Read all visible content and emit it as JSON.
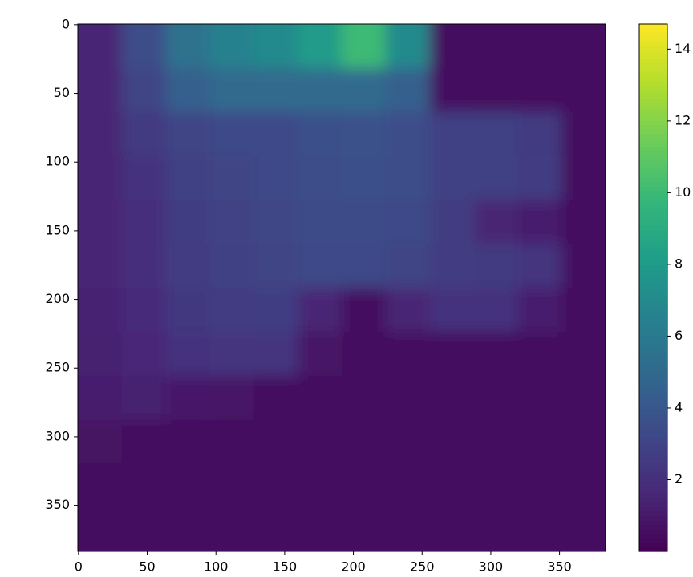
{
  "chart_data": {
    "type": "heatmap",
    "cmap": "viridis",
    "x": [
      15.5,
      47.5,
      79.5,
      111.5,
      143.5,
      175.5,
      207.5,
      239.5,
      271.5,
      303.5,
      335.5,
      367.5
    ],
    "y": [
      15.5,
      47.5,
      79.5,
      111.5,
      143.5,
      175.5,
      207.5,
      239.5,
      271.5,
      303.5,
      335.5,
      367.5
    ],
    "values": [
      [
        1.5,
        3.5,
        5.5,
        6.5,
        7,
        8,
        10,
        7,
        0.6,
        0.5,
        0.5,
        0.5
      ],
      [
        1.5,
        3,
        4.5,
        5,
        5,
        5,
        5,
        4.5,
        0.6,
        0.5,
        0.5,
        0.5
      ],
      [
        1.5,
        2.5,
        3,
        3.2,
        3.3,
        3.6,
        3.7,
        3.5,
        2.8,
        2.8,
        2.5,
        0.5
      ],
      [
        1.5,
        2.2,
        2.8,
        3,
        3.2,
        3.5,
        3.6,
        3.5,
        2.8,
        2.8,
        2.6,
        0.5
      ],
      [
        1.5,
        2,
        2.7,
        2.9,
        3.1,
        3.4,
        3.4,
        3.2,
        2.6,
        1.5,
        1.2,
        0.5
      ],
      [
        1.5,
        2,
        2.6,
        2.8,
        3,
        3.2,
        3.2,
        3,
        2.6,
        2.5,
        2.3,
        0.5
      ],
      [
        1.4,
        1.8,
        2.4,
        2.6,
        2.7,
        1.5,
        0.6,
        1.5,
        2.2,
        2.2,
        1.2,
        0.5
      ],
      [
        1.3,
        1.6,
        2.2,
        2.3,
        2.3,
        0.8,
        0.5,
        0.5,
        0.5,
        0.5,
        0.5,
        0.5
      ],
      [
        1.2,
        1.3,
        1,
        0.8,
        0.6,
        0.5,
        0.5,
        0.5,
        0.5,
        0.5,
        0.5,
        0.5
      ],
      [
        0.7,
        0.5,
        0.5,
        0.5,
        0.5,
        0.5,
        0.5,
        0.5,
        0.5,
        0.5,
        0.5,
        0.5
      ],
      [
        0.5,
        0.5,
        0.5,
        0.5,
        0.5,
        0.5,
        0.5,
        0.5,
        0.5,
        0.5,
        0.5,
        0.5
      ],
      [
        0.5,
        0.5,
        0.5,
        0.5,
        0.5,
        0.5,
        0.5,
        0.5,
        0.5,
        0.5,
        0.5,
        0.5
      ]
    ],
    "xlim": [
      -0.5,
      383.5
    ],
    "ylim": [
      383.5,
      -0.5
    ],
    "xticks": [
      0,
      50,
      100,
      150,
      200,
      250,
      300,
      350
    ],
    "yticks": [
      0,
      50,
      100,
      150,
      200,
      250,
      300,
      350
    ],
    "clim": [
      0,
      14.7
    ],
    "cticks": [
      2,
      4,
      6,
      8,
      10,
      12,
      14
    ]
  }
}
